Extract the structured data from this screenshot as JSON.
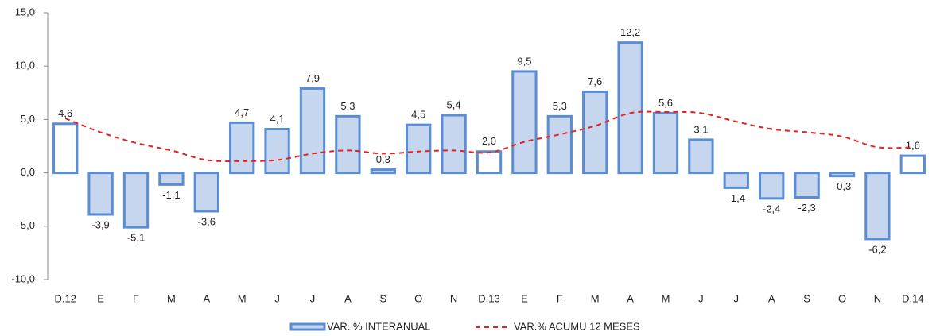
{
  "chart_data": {
    "type": "bar",
    "categories": [
      "D.12",
      "E",
      "F",
      "M",
      "A",
      "M",
      "J",
      "J",
      "A",
      "S",
      "O",
      "N",
      "D.13",
      "E",
      "F",
      "M",
      "A",
      "M",
      "J",
      "J",
      "A",
      "S",
      "O",
      "N",
      "D.14"
    ],
    "series": [
      {
        "name": "VAR. % INTERANUAL",
        "type": "bar",
        "color": "#c6d6ef",
        "stroke": "#5a8ed4",
        "point_colors": [
          "#ffffff",
          "#c6d6ef",
          "#c6d6ef",
          "#c6d6ef",
          "#c6d6ef",
          "#c6d6ef",
          "#c6d6ef",
          "#c6d6ef",
          "#c6d6ef",
          "#c6d6ef",
          "#c6d6ef",
          "#c6d6ef",
          "#ffffff",
          "#c6d6ef",
          "#c6d6ef",
          "#c6d6ef",
          "#c6d6ef",
          "#c6d6ef",
          "#c6d6ef",
          "#c6d6ef",
          "#c6d6ef",
          "#c6d6ef",
          "#c6d6ef",
          "#c6d6ef",
          "#ffffff"
        ],
        "values": [
          4.6,
          -3.9,
          -5.1,
          -1.1,
          -3.6,
          4.7,
          4.1,
          7.9,
          5.3,
          0.3,
          4.5,
          5.4,
          2.0,
          9.5,
          5.3,
          7.6,
          12.2,
          5.6,
          3.1,
          -1.4,
          -2.4,
          -2.3,
          -0.3,
          -6.2,
          1.6
        ],
        "value_labels": [
          "4,6",
          "-3,9",
          "-5,1",
          "-1,1",
          "-3,6",
          "4,7",
          "4,1",
          "7,9",
          "5,3",
          "0,3",
          "4,5",
          "5,4",
          "2,0",
          "9,5",
          "5,3",
          "7,6",
          "12,2",
          "5,6",
          "3,1",
          "-1,4",
          "-2,4",
          "-2,3",
          "-0,3",
          "-6,2",
          "1,6"
        ]
      },
      {
        "name": "VAR.% ACUMU 12 MESES",
        "type": "line",
        "color": "#e8201e",
        "dashed": true,
        "values": [
          5.1,
          3.8,
          2.8,
          2.1,
          1.2,
          1.1,
          1.2,
          1.8,
          2.1,
          1.8,
          2.0,
          2.1,
          1.9,
          2.9,
          3.6,
          4.4,
          5.6,
          5.7,
          5.6,
          4.8,
          4.1,
          3.8,
          3.4,
          2.4,
          2.4
        ]
      }
    ],
    "ylim": [
      -10,
      15
    ],
    "yticks": [
      {
        "value": -10,
        "label": "-10,0"
      },
      {
        "value": -5,
        "label": "-5,0"
      },
      {
        "value": 0,
        "label": "0,0"
      },
      {
        "value": 5,
        "label": "5,0"
      },
      {
        "value": 10,
        "label": "10,0"
      },
      {
        "value": 15,
        "label": "15,0"
      }
    ],
    "legend": "bottom"
  }
}
